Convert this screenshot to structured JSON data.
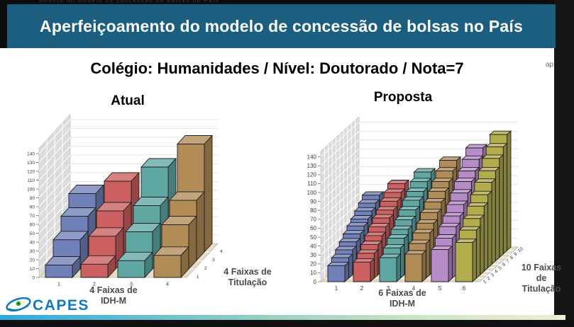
{
  "top_strip": {
    "fragment": "amento do modelo de concessão de bolsas no País",
    "side_fragment": "ap"
  },
  "header": {
    "title": "Aperfeiçoamento do modelo de concessão de bolsas no País",
    "bg_color": "#1C5E80"
  },
  "subtitle": "Colégio: Humanidades / Nível: Doutorado / Nota=7",
  "footer": {
    "logo_text": "CAPES",
    "logo_color": "#1278BE",
    "logo_dot_color": "#3BAA35",
    "gradient_colors": [
      "#2FA9E0",
      "#9ED3C1",
      "#EEF0D2"
    ]
  },
  "chart_data": [
    {
      "type": "bar",
      "variant": "3d-bar",
      "title": "Atual",
      "xlabel_lines": [
        "4 Faixas de",
        "IDH-M"
      ],
      "zlabel_lines": [
        "4 Faixas de",
        "Titulação"
      ],
      "categories": [
        "1",
        "2",
        "3",
        "4"
      ],
      "depth_labels": [
        "1",
        "2",
        "3",
        "4"
      ],
      "ylim": [
        0,
        140
      ],
      "ytick_step": 10,
      "grid": true,
      "series_colors": [
        "#7080B8",
        "#CC5F5F",
        "#5FA7A3",
        "#B18C57"
      ],
      "wall_color": "#DBDBDB",
      "floor_color": "#E3DDC8",
      "groups": [
        {
          "category": "1",
          "values": [
            14,
            33,
            50,
            66
          ]
        },
        {
          "category": "2",
          "values": [
            15,
            37,
            56,
            80
          ]
        },
        {
          "category": "3",
          "values": [
            19,
            42,
            62,
            96
          ]
        },
        {
          "category": "4",
          "values": [
            25,
            50,
            68,
            122
          ]
        }
      ]
    },
    {
      "type": "bar",
      "variant": "3d-bar",
      "title": "Proposta",
      "xlabel_lines": [
        "6 Faixas de",
        "IDH-M"
      ],
      "zlabel_lines": [
        "10 Faixas",
        "de",
        "Titulação"
      ],
      "categories": [
        "1",
        "2",
        "3",
        "4",
        "5",
        "6"
      ],
      "depth_labels": [
        "1",
        "2",
        "3",
        "4",
        "5",
        "6",
        "7",
        "8",
        "9",
        "10"
      ],
      "ylim": [
        0,
        140
      ],
      "ytick_step": 10,
      "grid": true,
      "series_colors": [
        "#7080B8",
        "#CC5F5F",
        "#5FA7A3",
        "#B18C57",
        "#B78BC7",
        "#B2AC4D"
      ],
      "wall_color": "#DBDBDB",
      "floor_color": "#E3DDC8",
      "groups": [
        {
          "category": "1",
          "values": [
            18,
            23,
            28,
            33,
            38,
            43,
            47,
            52,
            57,
            62
          ]
        },
        {
          "category": "2",
          "values": [
            22,
            28,
            34,
            40,
            46,
            52,
            57,
            63,
            69,
            75
          ]
        },
        {
          "category": "3",
          "values": [
            27,
            34,
            41,
            47,
            54,
            61,
            68,
            74,
            81,
            88
          ]
        },
        {
          "category": "4",
          "values": [
            31,
            39,
            47,
            54,
            62,
            70,
            78,
            85,
            93,
            101
          ]
        },
        {
          "category": "5",
          "values": [
            36,
            45,
            54,
            62,
            71,
            80,
            89,
            97,
            106,
            115
          ]
        },
        {
          "category": "6",
          "values": [
            44,
            54,
            63,
            73,
            82,
            92,
            101,
            111,
            120,
            130
          ]
        }
      ]
    }
  ]
}
